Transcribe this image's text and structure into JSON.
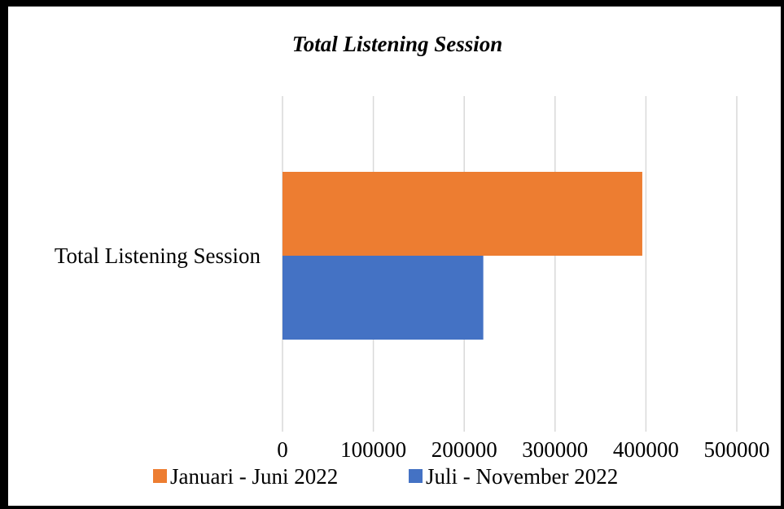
{
  "chart_data": {
    "type": "bar",
    "orientation": "horizontal",
    "title": "Total Listening Session",
    "categories": [
      "Total Listening Session"
    ],
    "series": [
      {
        "name": "Januari - Juni 2022",
        "values": [
          396000
        ],
        "color": "#ED7D31"
      },
      {
        "name": "Juli - November 2022",
        "values": [
          221000
        ],
        "color": "#4472C4"
      }
    ],
    "xlim": [
      0,
      500000
    ],
    "xticks": [
      "0",
      "100000",
      "200000",
      "300000",
      "400000",
      "500000"
    ],
    "grid": true,
    "legend_position": "bottom"
  }
}
